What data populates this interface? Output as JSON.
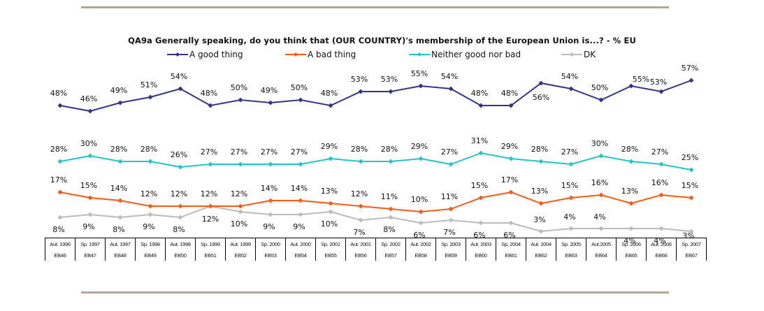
{
  "chart_data": {
    "type": "line",
    "title": "QA9a Generally speaking, do you think that (OUR COUNTRY)'s membership of the European Union is...?  - % EU",
    "xlabel": "",
    "ylabel": "",
    "grid": false,
    "legend_position": "top",
    "categories": [
      "Aut. 1996",
      "Sp. 1997",
      "Aut. 1997",
      "Sp. 1998",
      "Aut. 1998",
      "Sp. 1999",
      "Aut. 1999",
      "Sp. 2000",
      "Aut. 2000",
      "Sp. 2001",
      "Aut. 2001",
      "Sp. 2002",
      "Aut. 2002",
      "Sp. 2003",
      "Aut. 2003",
      "Sp. 2004",
      "Aut. 2004",
      "Sp. 2005",
      "Aut.2005",
      "Sp. 2006",
      "Aut. 2006",
      "Sp. 2007"
    ],
    "sublabels": [
      "EB46",
      "EB47",
      "EB48",
      "EB49",
      "EB50",
      "EB51",
      "EB52",
      "EB53",
      "EB54",
      "EB55",
      "EB56",
      "EB57",
      "EB58",
      "EB59",
      "EB60",
      "EB61",
      "EB62",
      "EB63",
      "EB64",
      "EB65",
      "EB66",
      "EB67"
    ],
    "series": [
      {
        "name": "A good thing",
        "color": "#333388",
        "values": [
          48,
          46,
          49,
          51,
          54,
          48,
          50,
          49,
          50,
          48,
          53,
          53,
          55,
          54,
          48,
          48,
          56,
          54,
          50,
          55,
          53,
          57
        ]
      },
      {
        "name": "A bad thing",
        "color": "#ff5a14",
        "values": [
          17,
          15,
          14,
          12,
          12,
          12,
          12,
          14,
          14,
          13,
          12,
          11,
          10,
          11,
          15,
          17,
          13,
          15,
          16,
          13,
          16,
          15
        ]
      },
      {
        "name": "Neither good nor bad",
        "color": "#21c6c6",
        "values": [
          28,
          30,
          28,
          28,
          26,
          27,
          27,
          27,
          27,
          29,
          28,
          28,
          29,
          27,
          31,
          29,
          28,
          27,
          30,
          28,
          27,
          25
        ]
      },
      {
        "name": "DK",
        "color": "#bbbbbb",
        "values": [
          8,
          9,
          8,
          9,
          8,
          12,
          10,
          9,
          9,
          10,
          7,
          8,
          6,
          7,
          6,
          6,
          3,
          4,
          4,
          4,
          4,
          3
        ]
      }
    ],
    "value_suffix": "%"
  }
}
